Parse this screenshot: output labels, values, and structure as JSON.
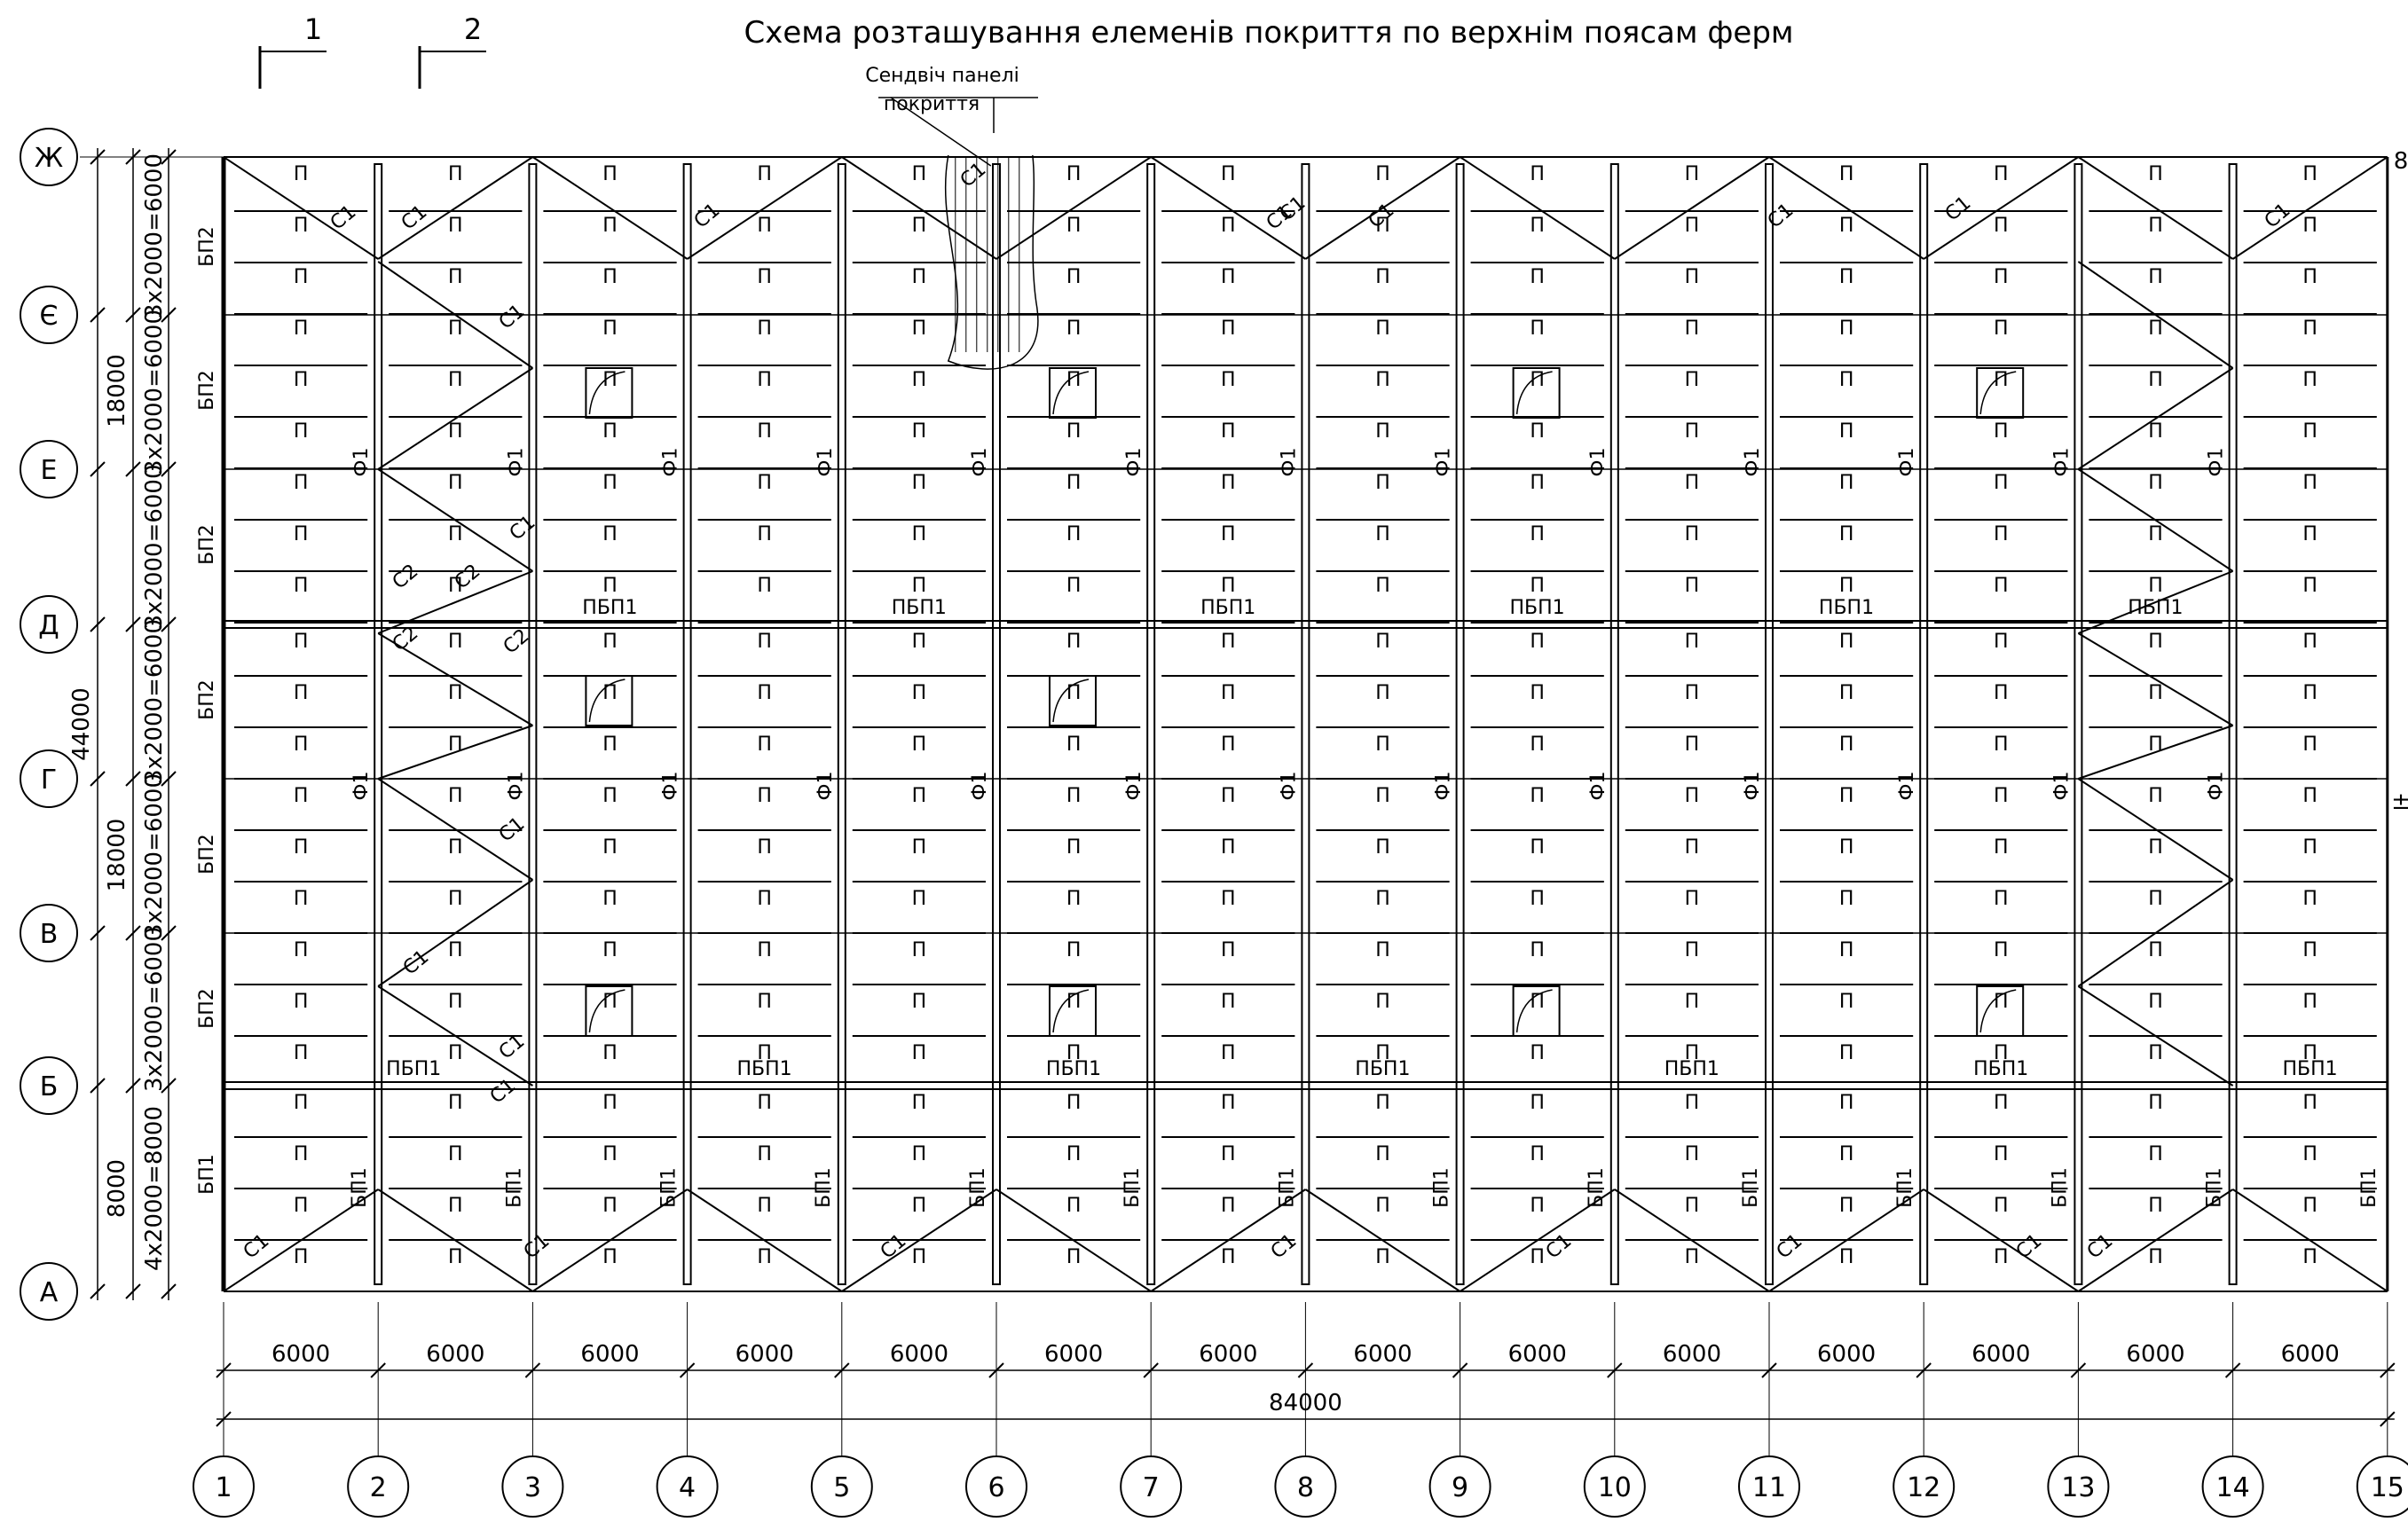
{
  "title": "Схема розташування елеменів покриття по верхнім поясам ферм",
  "section_marks": [
    {
      "number": "1"
    },
    {
      "number": "2"
    }
  ],
  "callout": {
    "line1": "Сендвіч панелі",
    "line2": "покриття"
  },
  "column_axes": [
    "1",
    "2",
    "3",
    "4",
    "5",
    "6",
    "7",
    "8",
    "9",
    "10",
    "11",
    "12",
    "13",
    "14",
    "15"
  ],
  "row_axes": [
    "Ж",
    "Є",
    "Е",
    "Д",
    "Г",
    "В",
    "Б",
    "А"
  ],
  "dimensions": {
    "span_each": "6000",
    "total_length": "84000",
    "total_width": "44000",
    "zone_upper": "18000",
    "zone_middle": "18000",
    "zone_lower": "8000",
    "panel_module": "3х2000=6000",
    "panel_module_lower": "4х2000=8000"
  },
  "element_labels": {
    "panel": "П",
    "tie_beam_edge": "БП2",
    "tie_beam_lower": "БП1",
    "valley_beam": "ПБП1",
    "brace_1": "С1",
    "brace_2": "С2",
    "lantern_frame": "Ф1"
  },
  "right_edge_marks": [
    "8",
    "±"
  ],
  "colors": {
    "line": "#000000",
    "background": "#ffffff"
  }
}
